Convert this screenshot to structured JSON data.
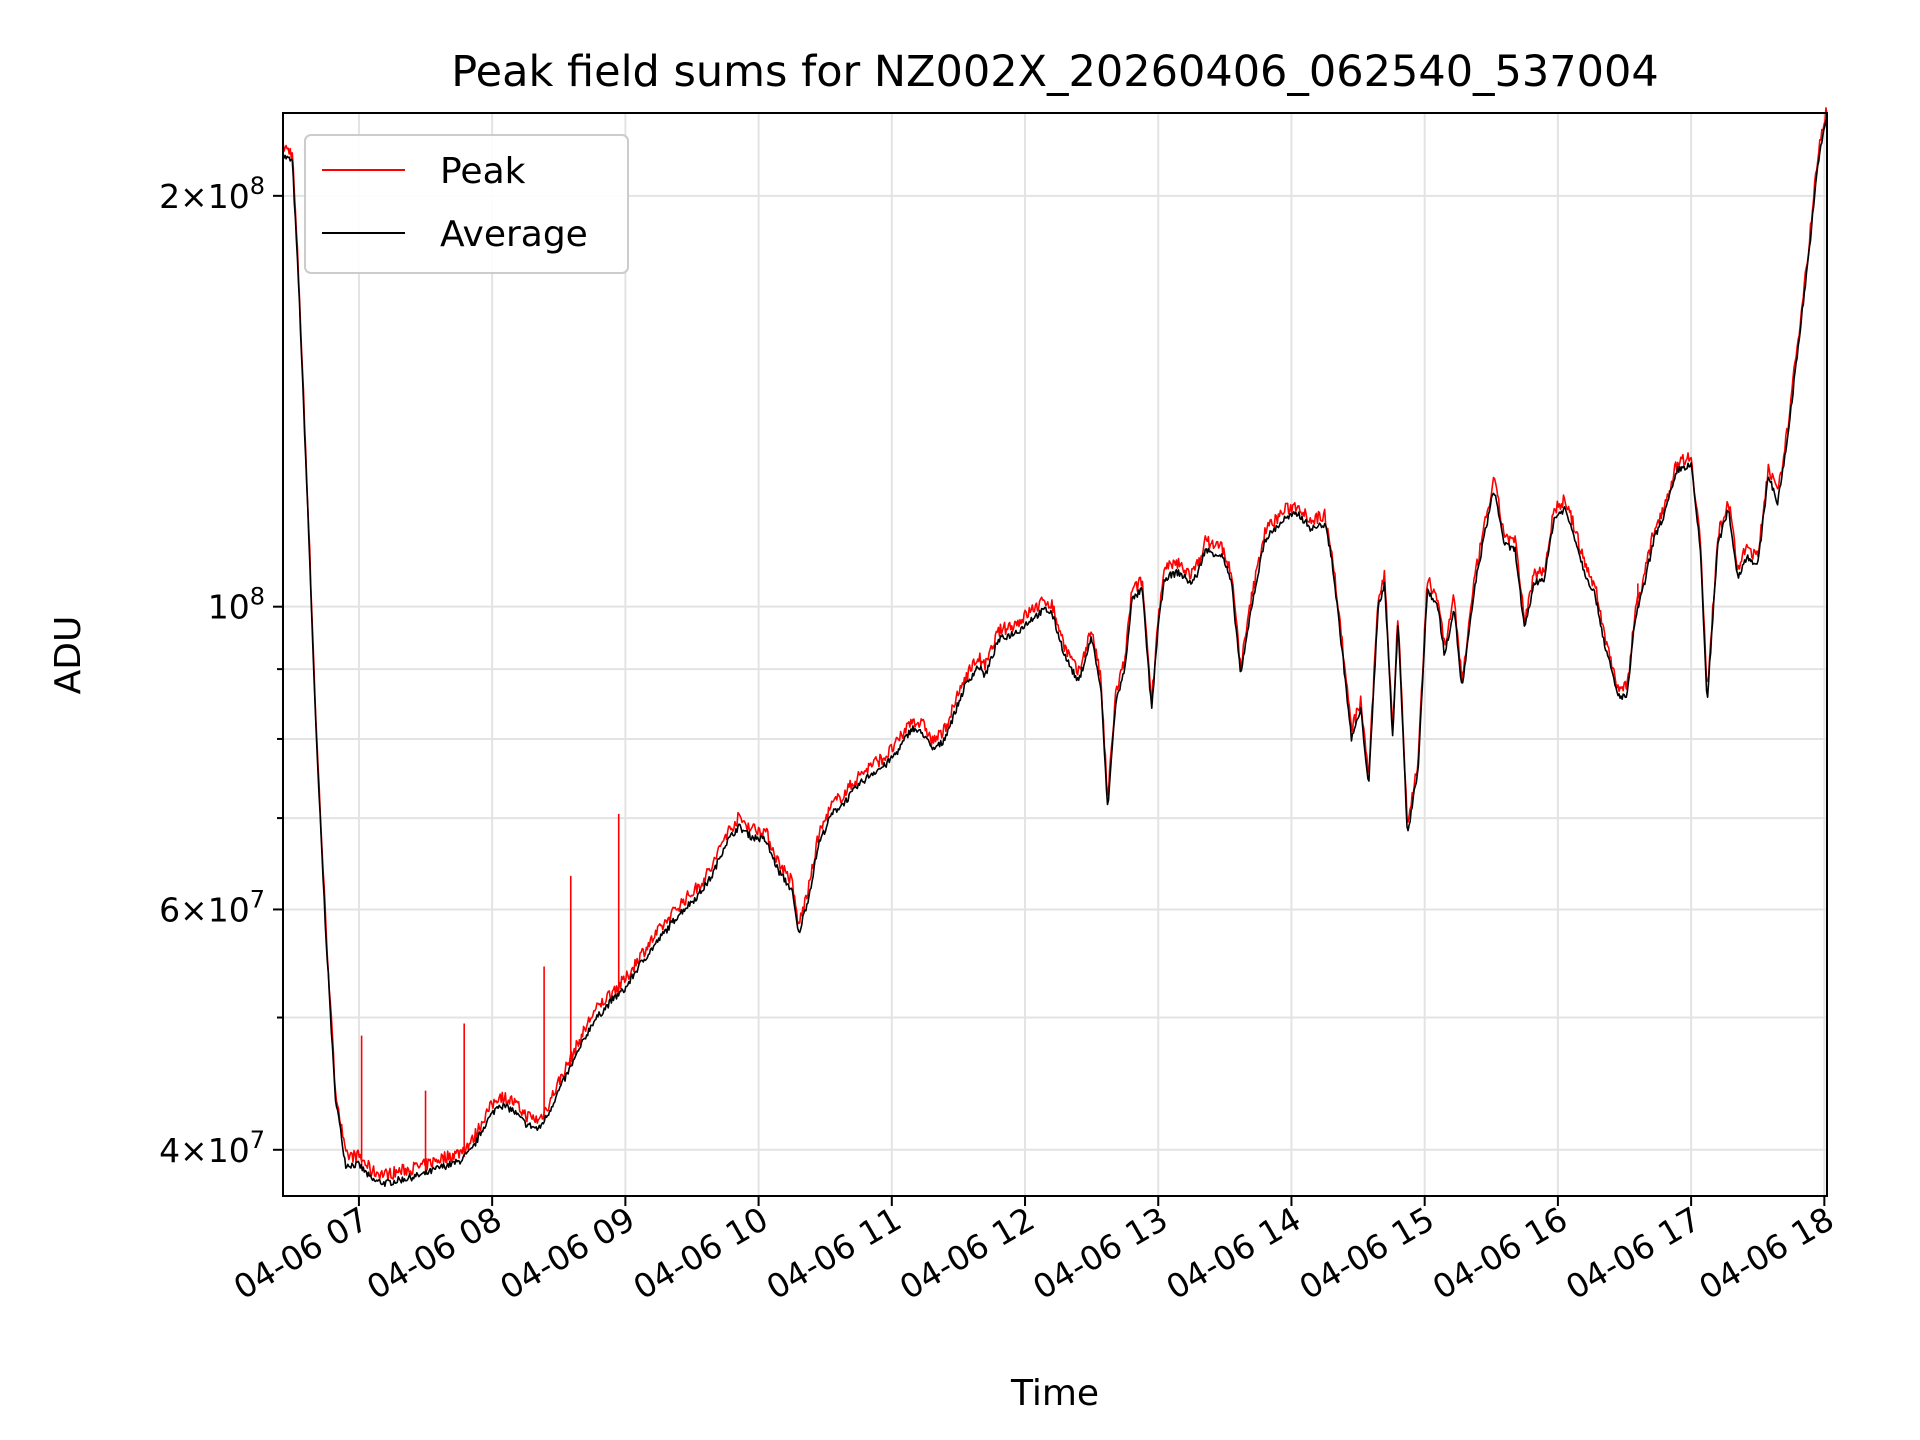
{
  "chart_data": {
    "type": "line",
    "title": "Peak field sums for NZ002X_20260406_062540_537004",
    "xlabel": "Time",
    "ylabel": "ADU",
    "yscale": "log",
    "grid": true,
    "legend_position": "top-left",
    "xlim_hours": [
      6.43,
      18.02
    ],
    "ylim": [
      37000000,
      230000000
    ],
    "x_ticks": [
      {
        "hour": 7,
        "label": "04-06 07"
      },
      {
        "hour": 8,
        "label": "04-06 08"
      },
      {
        "hour": 9,
        "label": "04-06 09"
      },
      {
        "hour": 10,
        "label": "04-06 10"
      },
      {
        "hour": 11,
        "label": "04-06 11"
      },
      {
        "hour": 12,
        "label": "04-06 12"
      },
      {
        "hour": 13,
        "label": "04-06 13"
      },
      {
        "hour": 14,
        "label": "04-06 14"
      },
      {
        "hour": 15,
        "label": "04-06 15"
      },
      {
        "hour": 16,
        "label": "04-06 16"
      },
      {
        "hour": 17,
        "label": "04-06 17"
      },
      {
        "hour": 18,
        "label": "04-06 18"
      }
    ],
    "y_ticks": [
      {
        "value": 40000000,
        "base": "4",
        "exp": "7"
      },
      {
        "value": 60000000,
        "base": "6",
        "exp": "7"
      },
      {
        "value": 100000000,
        "base": "",
        "exp": "8"
      },
      {
        "value": 200000000,
        "base": "2",
        "exp": "8"
      }
    ],
    "y_minor_ticks": [
      50000000,
      70000000,
      80000000,
      90000000
    ],
    "legend": [
      {
        "key": "peak",
        "label": "Peak",
        "color": "#ff0000"
      },
      {
        "key": "average",
        "label": "Average",
        "color": "#000000"
      }
    ],
    "average_series": {
      "name": "Average",
      "color": "#000000",
      "points": [
        [
          6.43,
          214000000
        ],
        [
          6.5,
          212000000
        ],
        [
          6.55,
          170000000
        ],
        [
          6.62,
          115000000
        ],
        [
          6.68,
          80000000
        ],
        [
          6.75,
          58000000
        ],
        [
          6.82,
          44000000
        ],
        [
          6.9,
          39000000
        ],
        [
          7.0,
          39000000
        ],
        [
          7.1,
          38000000
        ],
        [
          7.2,
          37800000
        ],
        [
          7.35,
          38100000
        ],
        [
          7.5,
          38400000
        ],
        [
          7.6,
          38800000
        ],
        [
          7.75,
          39200000
        ],
        [
          7.85,
          40000000
        ],
        [
          7.95,
          41800000
        ],
        [
          8.05,
          43200000
        ],
        [
          8.15,
          42800000
        ],
        [
          8.25,
          41800000
        ],
        [
          8.35,
          41400000
        ],
        [
          8.42,
          42500000
        ],
        [
          8.5,
          44200000
        ],
        [
          8.6,
          46200000
        ],
        [
          8.75,
          49500000
        ],
        [
          8.9,
          51500000
        ],
        [
          9.0,
          52500000
        ],
        [
          9.1,
          54500000
        ],
        [
          9.25,
          57000000
        ],
        [
          9.4,
          59500000
        ],
        [
          9.55,
          61500000
        ],
        [
          9.65,
          63500000
        ],
        [
          9.75,
          67000000
        ],
        [
          9.85,
          69000000
        ],
        [
          9.95,
          67800000
        ],
        [
          10.05,
          67500000
        ],
        [
          10.15,
          64000000
        ],
        [
          10.25,
          62000000
        ],
        [
          10.3,
          57500000
        ],
        [
          10.38,
          61500000
        ],
        [
          10.45,
          67000000
        ],
        [
          10.55,
          70500000
        ],
        [
          10.65,
          72000000
        ],
        [
          10.75,
          74000000
        ],
        [
          10.85,
          75500000
        ],
        [
          10.95,
          76500000
        ],
        [
          11.05,
          78500000
        ],
        [
          11.15,
          81500000
        ],
        [
          11.25,
          80500000
        ],
        [
          11.3,
          78500000
        ],
        [
          11.38,
          79500000
        ],
        [
          11.45,
          82500000
        ],
        [
          11.55,
          87500000
        ],
        [
          11.65,
          90500000
        ],
        [
          11.7,
          89000000
        ],
        [
          11.8,
          94500000
        ],
        [
          11.95,
          96000000
        ],
        [
          12.05,
          98000000
        ],
        [
          12.15,
          99500000
        ],
        [
          12.2,
          99000000
        ],
        [
          12.3,
          92000000
        ],
        [
          12.4,
          88000000
        ],
        [
          12.5,
          95000000
        ],
        [
          12.57,
          87000000
        ],
        [
          12.62,
          71000000
        ],
        [
          12.68,
          85000000
        ],
        [
          12.75,
          90000000
        ],
        [
          12.8,
          101000000
        ],
        [
          12.88,
          103000000
        ],
        [
          12.95,
          84000000
        ],
        [
          13.0,
          97000000
        ],
        [
          13.05,
          105000000
        ],
        [
          13.15,
          106000000
        ],
        [
          13.25,
          104000000
        ],
        [
          13.3,
          106000000
        ],
        [
          13.35,
          110000000
        ],
        [
          13.48,
          109000000
        ],
        [
          13.55,
          104000000
        ],
        [
          13.62,
          89000000
        ],
        [
          13.7,
          100000000
        ],
        [
          13.8,
          112000000
        ],
        [
          13.95,
          116000000
        ],
        [
          14.05,
          117000000
        ],
        [
          14.15,
          114000000
        ],
        [
          14.25,
          115000000
        ],
        [
          14.3,
          109000000
        ],
        [
          14.38,
          93000000
        ],
        [
          14.45,
          80000000
        ],
        [
          14.52,
          84000000
        ],
        [
          14.58,
          74000000
        ],
        [
          14.65,
          100000000
        ],
        [
          14.7,
          104000000
        ],
        [
          14.76,
          80000000
        ],
        [
          14.8,
          98000000
        ],
        [
          14.87,
          68000000
        ],
        [
          14.95,
          76000000
        ],
        [
          15.02,
          103000000
        ],
        [
          15.1,
          100000000
        ],
        [
          15.15,
          92000000
        ],
        [
          15.22,
          100000000
        ],
        [
          15.28,
          87000000
        ],
        [
          15.38,
          104000000
        ],
        [
          15.45,
          113000000
        ],
        [
          15.52,
          122000000
        ],
        [
          15.6,
          111000000
        ],
        [
          15.68,
          110000000
        ],
        [
          15.75,
          96000000
        ],
        [
          15.82,
          104000000
        ],
        [
          15.9,
          105000000
        ],
        [
          15.97,
          116000000
        ],
        [
          16.05,
          118000000
        ],
        [
          16.12,
          113000000
        ],
        [
          16.2,
          106000000
        ],
        [
          16.28,
          102000000
        ],
        [
          16.35,
          94000000
        ],
        [
          16.45,
          86000000
        ],
        [
          16.52,
          86000000
        ],
        [
          16.58,
          98000000
        ],
        [
          16.65,
          104000000
        ],
        [
          16.72,
          112000000
        ],
        [
          16.8,
          117000000
        ],
        [
          16.9,
          126000000
        ],
        [
          17.0,
          127000000
        ],
        [
          17.07,
          110000000
        ],
        [
          17.12,
          85000000
        ],
        [
          17.2,
          111000000
        ],
        [
          17.28,
          118000000
        ],
        [
          17.35,
          105000000
        ],
        [
          17.42,
          109000000
        ],
        [
          17.5,
          107000000
        ],
        [
          17.58,
          125000000
        ],
        [
          17.65,
          119000000
        ],
        [
          17.72,
          132000000
        ],
        [
          17.8,
          154000000
        ],
        [
          17.88,
          180000000
        ],
        [
          17.95,
          210000000
        ],
        [
          18.0,
          225000000
        ],
        [
          18.02,
          228000000
        ]
      ]
    },
    "peak_spikes": [
      {
        "hour": 7.02,
        "value": 48500000
      },
      {
        "hour": 7.5,
        "value": 44200000
      },
      {
        "hour": 7.79,
        "value": 49500000
      },
      {
        "hour": 8.39,
        "value": 54500000
      },
      {
        "hour": 8.59,
        "value": 63500000
      },
      {
        "hour": 8.95,
        "value": 70500000
      },
      {
        "hour": 16.6,
        "value": 104000000
      }
    ]
  }
}
